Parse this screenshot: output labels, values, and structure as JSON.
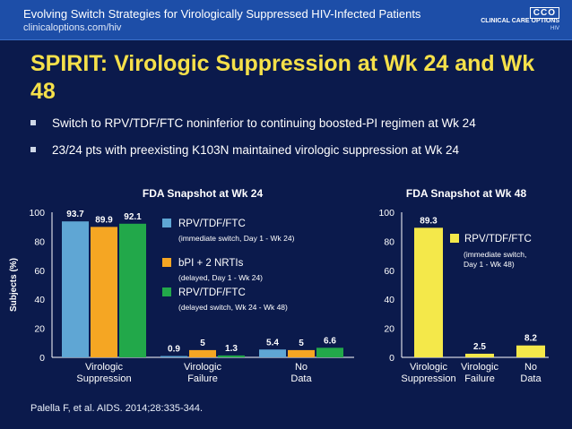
{
  "header": {
    "title": "Evolving Switch Strategies for Virologically Suppressed HIV-Infected Patients",
    "url": "clinicaloptions.com/hiv",
    "logo_mark": "CCO",
    "logo_name": "CLINICAL CARE OPTIONS",
    "logo_sub": "HIV"
  },
  "slide": {
    "title": "SPIRIT: Virologic Suppression at Wk 24 and Wk 48",
    "bullets": [
      "Switch to RPV/TDF/FTC noninferior to continuing boosted-PI regimen at Wk 24",
      "23/24 pts with preexisting K103N maintained virologic suppression at Wk 24"
    ],
    "citation": "Palella F, et al. AIDS. 2014;28:335-344."
  },
  "chart_data": [
    {
      "type": "bar",
      "title": "FDA Snapshot at Wk 24",
      "ylabel": "Subjects (%)",
      "ylim": [
        0,
        100
      ],
      "yticks": [
        0,
        20,
        40,
        60,
        80,
        100
      ],
      "categories": [
        "Virologic Suppression",
        "Virologic Failure",
        "No Data"
      ],
      "series": [
        {
          "name": "RPV/TDF/FTC",
          "sub": "(immediate switch, Day 1 - Wk 24)",
          "color": "#5fa6d4",
          "values": [
            93.7,
            0.9,
            5.4
          ],
          "labels": [
            "93.7",
            "0.9",
            "5.4"
          ]
        },
        {
          "name": "bPI + 2 NRTIs",
          "sub": "(delayed, Day 1 - Wk 24)",
          "color": "#f5a623",
          "values": [
            89.9,
            5,
            5
          ],
          "labels": [
            "89.9",
            "5",
            "5"
          ]
        },
        {
          "name": "RPV/TDF/FTC",
          "sub": "(delayed switch, Wk 24 - Wk 48)",
          "color": "#22a84a",
          "values": [
            92.1,
            1.3,
            6.6
          ],
          "labels": [
            "92.1",
            "1.3",
            "6.6"
          ]
        }
      ]
    },
    {
      "type": "bar",
      "title": "FDA Snapshot at Wk 48",
      "ylim": [
        0,
        100
      ],
      "yticks": [
        0,
        20,
        40,
        60,
        80,
        100
      ],
      "categories": [
        "Virologic Suppression",
        "Virologic Failure",
        "No Data"
      ],
      "series": [
        {
          "name": "RPV/TDF/FTC",
          "sub": "(immediate switch, Day 1 - Wk 48)",
          "color": "#f4e84a",
          "values": [
            89.3,
            2.5,
            8.2
          ],
          "labels": [
            "89.3",
            "2.5",
            "8.2"
          ]
        }
      ]
    }
  ]
}
